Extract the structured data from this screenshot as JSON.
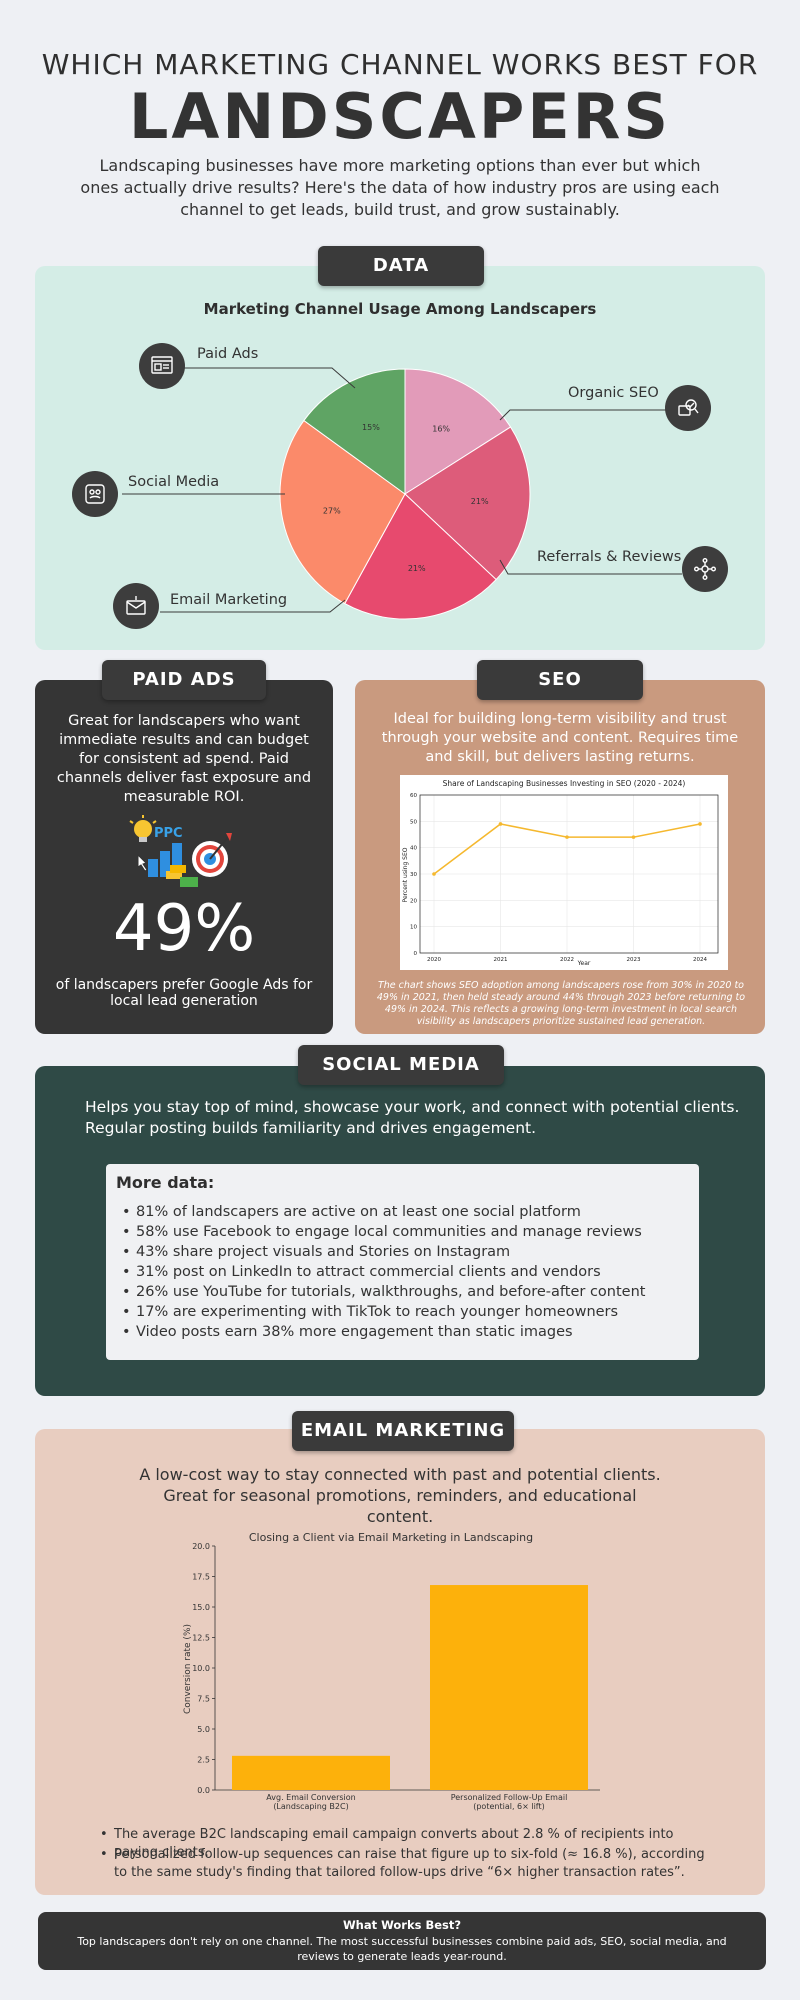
{
  "header": {
    "pre_title": "WHICH MARKETING CHANNEL WORKS BEST FOR",
    "title": "LANDSCAPERS",
    "intro": "Landscaping businesses have more marketing options than ever but which ones actually drive results? Here's the data of how industry pros are using each channel to get leads, build trust, and grow sustainably."
  },
  "data_section": {
    "tag": "DATA",
    "chart_title": "Marketing Channel Usage Among Landscapers",
    "labels": {
      "paid_ads": "Paid Ads",
      "organic_seo": "Organic SEO",
      "social_media": "Social Media",
      "referrals": "Referrals & Reviews",
      "email": "Email Marketing"
    },
    "icons": [
      "ads-icon",
      "seo-icon",
      "social-media-icon",
      "referrals-icon",
      "email-icon"
    ]
  },
  "chart_data": [
    {
      "type": "pie",
      "title": "Marketing Channel Usage Among Landscapers",
      "slices": [
        {
          "label": "Organic SEO",
          "value": 16,
          "color": "#e29bb9"
        },
        {
          "label": "Referrals & Reviews",
          "value": 21,
          "color": "#dd5c7a"
        },
        {
          "label": "Email Marketing",
          "value": 21,
          "color": "#e74a6e"
        },
        {
          "label": "Social Media",
          "value": 27,
          "color": "#fb8a6a"
        },
        {
          "label": "Paid Ads",
          "value": 15,
          "color": "#5fa464"
        }
      ]
    },
    {
      "type": "line",
      "title": "Share of Landscaping Businesses Investing in SEO (2020 - 2024)",
      "xlabel": "Year",
      "ylabel": "Percent using SEO",
      "x": [
        "2020",
        "2021",
        "2022",
        "2023",
        "2024"
      ],
      "values": [
        30,
        49,
        44,
        44,
        49
      ],
      "ylim": [
        0,
        60
      ],
      "yticks": [
        0,
        10,
        20,
        30,
        40,
        50,
        60
      ],
      "grid": true,
      "color": "#f5b82e"
    },
    {
      "type": "bar",
      "title": "Closing a Client via Email Marketing in Landscaping",
      "ylabel": "Conversion rate (%)",
      "categories": [
        "Avg. Email Conversion\n(Landscaping B2C)",
        "Personalized Follow-Up Email\n(potential, 6× lift)"
      ],
      "values": [
        2.8,
        16.8
      ],
      "ylim": [
        0,
        20
      ],
      "yticks": [
        "0.0",
        "2.5",
        "5.0",
        "7.5",
        "10.0",
        "12.5",
        "15.0",
        "17.5",
        "20.0"
      ],
      "color": "#fdb10b"
    }
  ],
  "paid_ads": {
    "tag": "PAID ADS",
    "description": "Great for landscapers who want immediate results and can budget for consistent ad spend. Paid channels deliver fast exposure and measurable ROI.",
    "icon_text": "PPC",
    "big_number": "49%",
    "stat_text": "of landscapers prefer Google Ads for local lead generation"
  },
  "seo": {
    "tag": "SEO",
    "description": "Ideal for building long-term visibility and trust through your website and content. Requires time and skill, but delivers lasting returns.",
    "caption": "The chart shows SEO adoption among landscapers rose from 30% in 2020 to 49% in 2021, then held steady around 44% through 2023 before returning to 49% in 2024. This reflects a growing long-term investment in local search visibility as landscapers prioritize sustained lead generation."
  },
  "social_media": {
    "tag": "SOCIAL MEDIA",
    "description": "Helps you stay top of mind, showcase your work, and connect with potential clients. Regular posting builds familiarity and drives engagement.",
    "more_title": "More data:",
    "items": [
      "81% of landscapers are active on at least one social platform",
      "58% use Facebook to engage local communities and manage reviews",
      "43% share project visuals and Stories on Instagram",
      "31% post on LinkedIn to attract commercial clients and vendors",
      "26% use YouTube for tutorials, walkthroughs, and before-after content",
      "17% are experimenting with TikTok to reach younger homeowners",
      "Video posts earn 38% more engagement than static images"
    ]
  },
  "email_marketing": {
    "tag": "EMAIL MARKETING",
    "description": "A low-cost way to stay connected with past and potential clients. Great for seasonal promotions, reminders, and educational content.",
    "bullets": [
      "The average B2C landscaping email campaign converts about 2.8 % of recipients into paying clients.",
      "Personalized follow-up sequences can raise that figure up to six-fold (≈ 16.8 %), according to the same study's finding that tailored follow-ups drive “6× higher transaction rates”."
    ]
  },
  "footer": {
    "title": "What Works Best?",
    "text": "Top landscapers don't rely on one channel. The most successful businesses combine paid ads, SEO, social media, and reviews to generate leads year-round."
  }
}
